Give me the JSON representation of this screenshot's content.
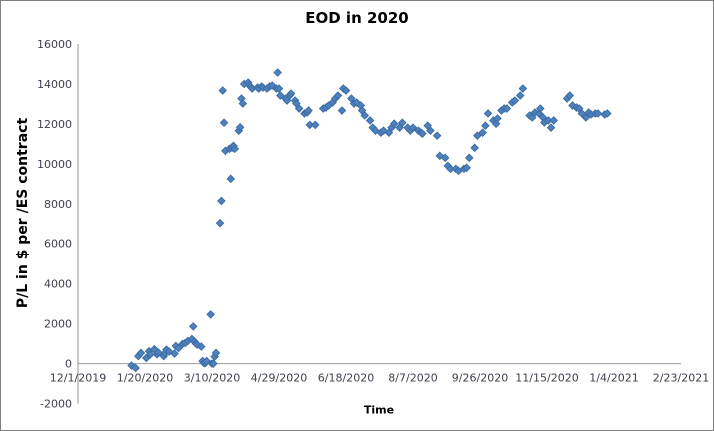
{
  "chart_data": {
    "type": "scatter",
    "title": "EOD in 2020",
    "xlabel": "Time",
    "ylabel": "P/L in $ per /ES contract",
    "legend": false,
    "grid": false,
    "x_axis": {
      "start_date": "2019-12-01",
      "tick_interval_days": 50,
      "tick_labels": [
        "12/1/2019",
        "1/20/2020",
        "3/10/2020",
        "4/29/2020",
        "6/18/2020",
        "8/7/2020",
        "9/26/2020",
        "11/15/2020",
        "1/4/2021",
        "2/23/2021"
      ]
    },
    "y_axis": {
      "min": -2000,
      "max": 16000,
      "step": 2000,
      "tick_labels": [
        "-2000",
        "0",
        "2000",
        "4000",
        "6000",
        "8000",
        "10000",
        "12000",
        "14000",
        "16000"
      ]
    },
    "marker": {
      "shape": "diamond",
      "color": "#4f81bd",
      "edge_color": "#3c6da5"
    },
    "axis_color": "#a6a6a6",
    "tick_text_color": "#3f3f4f",
    "points": [
      [
        "2020-01-10",
        -100
      ],
      [
        "2020-01-13",
        -220
      ],
      [
        "2020-01-15",
        375
      ],
      [
        "2020-01-17",
        530
      ],
      [
        "2020-01-21",
        280
      ],
      [
        "2020-01-23",
        620
      ],
      [
        "2020-01-24",
        460
      ],
      [
        "2020-01-27",
        720
      ],
      [
        "2020-01-29",
        460
      ],
      [
        "2020-01-30",
        550
      ],
      [
        "2020-02-03",
        375
      ],
      [
        "2020-02-04",
        530
      ],
      [
        "2020-02-05",
        700
      ],
      [
        "2020-02-07",
        600
      ],
      [
        "2020-02-11",
        500
      ],
      [
        "2020-02-12",
        880
      ],
      [
        "2020-02-14",
        780
      ],
      [
        "2020-02-17",
        980
      ],
      [
        "2020-02-19",
        1030
      ],
      [
        "2020-02-21",
        1130
      ],
      [
        "2020-02-24",
        1230
      ],
      [
        "2020-02-25",
        1860
      ],
      [
        "2020-02-26",
        1100
      ],
      [
        "2020-02-27",
        1000
      ],
      [
        "2020-02-28",
        950
      ],
      [
        "2020-03-02",
        850
      ],
      [
        "2020-03-03",
        125
      ],
      [
        "2020-03-04",
        25
      ],
      [
        "2020-03-05",
        25
      ],
      [
        "2020-03-06",
        125
      ],
      [
        "2020-03-09",
        2460
      ],
      [
        "2020-03-10",
        0
      ],
      [
        "2020-03-11",
        0
      ],
      [
        "2020-03-12",
        350
      ],
      [
        "2020-03-13",
        530
      ],
      [
        "2020-03-16",
        7030
      ],
      [
        "2020-03-17",
        8140
      ],
      [
        "2020-03-18",
        13670
      ],
      [
        "2020-03-19",
        12060
      ],
      [
        "2020-03-20",
        10650
      ],
      [
        "2020-03-23",
        10750
      ],
      [
        "2020-03-24",
        9250
      ],
      [
        "2020-03-25",
        10800
      ],
      [
        "2020-03-26",
        10900
      ],
      [
        "2020-03-27",
        10750
      ],
      [
        "2020-03-30",
        11660
      ],
      [
        "2020-03-31",
        11830
      ],
      [
        "2020-04-01",
        13270
      ],
      [
        "2020-04-02",
        13020
      ],
      [
        "2020-04-03",
        14000
      ],
      [
        "2020-04-06",
        14070
      ],
      [
        "2020-04-07",
        13920
      ],
      [
        "2020-04-08",
        13850
      ],
      [
        "2020-04-09",
        13770
      ],
      [
        "2020-04-13",
        13820
      ],
      [
        "2020-04-14",
        13770
      ],
      [
        "2020-04-16",
        13870
      ],
      [
        "2020-04-17",
        13820
      ],
      [
        "2020-04-20",
        13770
      ],
      [
        "2020-04-22",
        13870
      ],
      [
        "2020-04-24",
        13920
      ],
      [
        "2020-04-27",
        13770
      ],
      [
        "2020-04-28",
        14570
      ],
      [
        "2020-04-29",
        13770
      ],
      [
        "2020-04-30",
        13420
      ],
      [
        "2020-05-04",
        13270
      ],
      [
        "2020-05-05",
        13170
      ],
      [
        "2020-05-07",
        13420
      ],
      [
        "2020-05-08",
        13520
      ],
      [
        "2020-05-11",
        13170
      ],
      [
        "2020-05-12",
        13020
      ],
      [
        "2020-05-14",
        12770
      ],
      [
        "2020-05-18",
        12520
      ],
      [
        "2020-05-20",
        12570
      ],
      [
        "2020-05-21",
        12670
      ],
      [
        "2020-05-22",
        11950
      ],
      [
        "2020-05-26",
        11950
      ],
      [
        "2020-06-01",
        12770
      ],
      [
        "2020-06-03",
        12820
      ],
      [
        "2020-06-05",
        12920
      ],
      [
        "2020-06-08",
        13070
      ],
      [
        "2020-06-10",
        13270
      ],
      [
        "2020-06-12",
        13420
      ],
      [
        "2020-06-15",
        12670
      ],
      [
        "2020-06-16",
        13770
      ],
      [
        "2020-06-18",
        13670
      ],
      [
        "2020-06-22",
        13270
      ],
      [
        "2020-06-24",
        13020
      ],
      [
        "2020-06-26",
        13070
      ],
      [
        "2020-06-29",
        12920
      ],
      [
        "2020-06-30",
        12670
      ],
      [
        "2020-07-02",
        12420
      ],
      [
        "2020-07-06",
        12170
      ],
      [
        "2020-07-08",
        11810
      ],
      [
        "2020-07-10",
        11660
      ],
      [
        "2020-07-14",
        11560
      ],
      [
        "2020-07-16",
        11660
      ],
      [
        "2020-07-20",
        11560
      ],
      [
        "2020-07-22",
        11810
      ],
      [
        "2020-07-24",
        12010
      ],
      [
        "2020-07-28",
        11810
      ],
      [
        "2020-07-30",
        12060
      ],
      [
        "2020-08-03",
        11810
      ],
      [
        "2020-08-05",
        11660
      ],
      [
        "2020-08-07",
        11810
      ],
      [
        "2020-08-11",
        11660
      ],
      [
        "2020-08-13",
        11560
      ],
      [
        "2020-08-14",
        11510
      ],
      [
        "2020-08-18",
        11910
      ],
      [
        "2020-08-20",
        11660
      ],
      [
        "2020-08-25",
        11410
      ],
      [
        "2020-08-27",
        10400
      ],
      [
        "2020-08-31",
        10300
      ],
      [
        "2020-09-02",
        9900
      ],
      [
        "2020-09-04",
        9750
      ],
      [
        "2020-09-08",
        9750
      ],
      [
        "2020-09-10",
        9650
      ],
      [
        "2020-09-14",
        9750
      ],
      [
        "2020-09-16",
        9800
      ],
      [
        "2020-09-18",
        10300
      ],
      [
        "2020-09-22",
        10800
      ],
      [
        "2020-09-24",
        11410
      ],
      [
        "2020-09-28",
        11560
      ],
      [
        "2020-09-30",
        11910
      ],
      [
        "2020-10-02",
        12520
      ],
      [
        "2020-10-06",
        12170
      ],
      [
        "2020-10-08",
        12010
      ],
      [
        "2020-10-09",
        12270
      ],
      [
        "2020-10-12",
        12670
      ],
      [
        "2020-10-14",
        12770
      ],
      [
        "2020-10-16",
        12770
      ],
      [
        "2020-10-20",
        13070
      ],
      [
        "2020-10-22",
        13170
      ],
      [
        "2020-10-26",
        13420
      ],
      [
        "2020-10-28",
        13770
      ],
      [
        "2020-11-02",
        12420
      ],
      [
        "2020-11-04",
        12320
      ],
      [
        "2020-11-06",
        12570
      ],
      [
        "2020-11-09",
        12520
      ],
      [
        "2020-11-10",
        12770
      ],
      [
        "2020-11-12",
        12320
      ],
      [
        "2020-11-13",
        12070
      ],
      [
        "2020-11-16",
        12170
      ],
      [
        "2020-11-18",
        11810
      ],
      [
        "2020-11-20",
        12170
      ],
      [
        "2020-11-30",
        13270
      ],
      [
        "2020-12-02",
        13420
      ],
      [
        "2020-12-04",
        12920
      ],
      [
        "2020-12-07",
        12820
      ],
      [
        "2020-12-09",
        12770
      ],
      [
        "2020-12-11",
        12520
      ],
      [
        "2020-12-14",
        12320
      ],
      [
        "2020-12-16",
        12570
      ],
      [
        "2020-12-18",
        12470
      ],
      [
        "2020-12-21",
        12520
      ],
      [
        "2020-12-23",
        12520
      ],
      [
        "2020-12-28",
        12470
      ],
      [
        "2020-12-30",
        12520
      ]
    ]
  }
}
